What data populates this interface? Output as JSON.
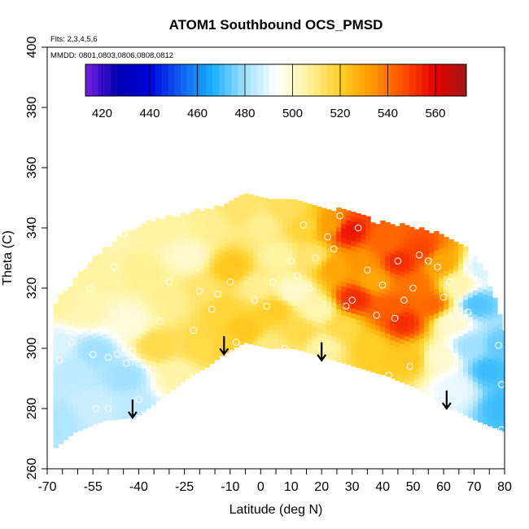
{
  "chart_data": {
    "type": "heatmap",
    "title": "ATOM1 Southbound OCS_PMSD",
    "subtitle_flights": "Flts: 2,3,4,5,6",
    "subtitle_dates": "MMDD: 0801,0803,0806,0808,0812",
    "xlabel": "Latitude (deg N)",
    "ylabel": "Theta (C)",
    "xlim": [
      -70,
      80
    ],
    "ylim": [
      260,
      400
    ],
    "x_major_ticks": [
      -70,
      -55,
      -40,
      -25,
      -10,
      0,
      10,
      20,
      30,
      40,
      50,
      60,
      70,
      80
    ],
    "x_minor_ticks": [
      -65,
      -60,
      -50,
      -45,
      -35,
      -30,
      -20,
      -15,
      -5,
      5,
      15,
      25,
      35,
      45,
      55,
      65,
      75
    ],
    "y_ticks": [
      260,
      280,
      300,
      320,
      340,
      360,
      380,
      400
    ],
    "colorbar": {
      "range": [
        413,
        573
      ],
      "tick_values": [
        420,
        440,
        460,
        480,
        500,
        520,
        540,
        560
      ],
      "tick_labels": [
        "420",
        "440",
        "460",
        "480",
        "500",
        "520",
        "540",
        "560"
      ],
      "colors": [
        "#7b1fe0",
        "#0000b0",
        "#0000d8",
        "#1060f0",
        "#18b0ff",
        "#9ee0ff",
        "#ffffff",
        "#fff4a0",
        "#ffd028",
        "#ff9a00",
        "#ff5000",
        "#e80000",
        "#a01818"
      ]
    },
    "field_anchors": [
      {
        "lat": -68,
        "theta": 275,
        "value": 482
      },
      {
        "lat": -68,
        "theta": 300,
        "value": 488
      },
      {
        "lat": -67,
        "theta": 315,
        "value": 506
      },
      {
        "lat": -62,
        "theta": 292,
        "value": 484
      },
      {
        "lat": -58,
        "theta": 312,
        "value": 504
      },
      {
        "lat": -55,
        "theta": 280,
        "value": 486
      },
      {
        "lat": -55,
        "theta": 298,
        "value": 480
      },
      {
        "lat": -53,
        "theta": 325,
        "value": 506
      },
      {
        "lat": -50,
        "theta": 336,
        "value": 504
      },
      {
        "lat": -45,
        "theta": 290,
        "value": 480
      },
      {
        "lat": -44,
        "theta": 308,
        "value": 498
      },
      {
        "lat": -42,
        "theta": 280,
        "value": 484
      },
      {
        "lat": -40,
        "theta": 325,
        "value": 508
      },
      {
        "lat": -35,
        "theta": 300,
        "value": 516
      },
      {
        "lat": -32,
        "theta": 340,
        "value": 506
      },
      {
        "lat": -30,
        "theta": 315,
        "value": 508
      },
      {
        "lat": -28,
        "theta": 290,
        "value": 505
      },
      {
        "lat": -25,
        "theta": 330,
        "value": 500
      },
      {
        "lat": -20,
        "theta": 300,
        "value": 516
      },
      {
        "lat": -20,
        "theta": 318,
        "value": 512
      },
      {
        "lat": -17,
        "theta": 340,
        "value": 508
      },
      {
        "lat": -14,
        "theta": 312,
        "value": 518
      },
      {
        "lat": -12,
        "theta": 300,
        "value": 518
      },
      {
        "lat": -10,
        "theta": 326,
        "value": 522
      },
      {
        "lat": -8,
        "theta": 345,
        "value": 512
      },
      {
        "lat": -6,
        "theta": 305,
        "value": 522
      },
      {
        "lat": -2,
        "theta": 320,
        "value": 508
      },
      {
        "lat": 0,
        "theta": 340,
        "value": 508
      },
      {
        "lat": 2,
        "theta": 300,
        "value": 510
      },
      {
        "lat": 4,
        "theta": 312,
        "value": 520
      },
      {
        "lat": 5,
        "theta": 330,
        "value": 506
      },
      {
        "lat": 8,
        "theta": 345,
        "value": 514
      },
      {
        "lat": 10,
        "theta": 318,
        "value": 500
      },
      {
        "lat": 12,
        "theta": 305,
        "value": 516
      },
      {
        "lat": 14,
        "theta": 340,
        "value": 518
      },
      {
        "lat": 16,
        "theta": 330,
        "value": 512
      },
      {
        "lat": 18,
        "theta": 312,
        "value": 504
      },
      {
        "lat": 20,
        "theta": 300,
        "value": 506
      },
      {
        "lat": 22,
        "theta": 340,
        "value": 532
      },
      {
        "lat": 24,
        "theta": 326,
        "value": 530
      },
      {
        "lat": 26,
        "theta": 306,
        "value": 516
      },
      {
        "lat": 28,
        "theta": 338,
        "value": 556
      },
      {
        "lat": 30,
        "theta": 316,
        "value": 552
      },
      {
        "lat": 32,
        "theta": 328,
        "value": 534
      },
      {
        "lat": 35,
        "theta": 300,
        "value": 520
      },
      {
        "lat": 36,
        "theta": 322,
        "value": 530
      },
      {
        "lat": 40,
        "theta": 335,
        "value": 542
      },
      {
        "lat": 42,
        "theta": 312,
        "value": 544
      },
      {
        "lat": 45,
        "theta": 328,
        "value": 552
      },
      {
        "lat": 46,
        "theta": 308,
        "value": 552
      },
      {
        "lat": 48,
        "theta": 296,
        "value": 522
      },
      {
        "lat": 50,
        "theta": 320,
        "value": 540
      },
      {
        "lat": 52,
        "theta": 332,
        "value": 548
      },
      {
        "lat": 55,
        "theta": 314,
        "value": 542
      },
      {
        "lat": 58,
        "theta": 328,
        "value": 530
      },
      {
        "lat": 58,
        "theta": 296,
        "value": 500
      },
      {
        "lat": 62,
        "theta": 308,
        "value": 500
      },
      {
        "lat": 63,
        "theta": 286,
        "value": 490
      },
      {
        "lat": 64,
        "theta": 320,
        "value": 504
      },
      {
        "lat": 68,
        "theta": 300,
        "value": 480
      },
      {
        "lat": 70,
        "theta": 314,
        "value": 472
      },
      {
        "lat": 72,
        "theta": 326,
        "value": 488
      },
      {
        "lat": 74,
        "theta": 292,
        "value": 470
      },
      {
        "lat": 78,
        "theta": 300,
        "value": 474
      },
      {
        "lat": 79,
        "theta": 280,
        "value": 470
      }
    ],
    "boundary_top": [
      [
        -68,
        315
      ],
      [
        -62,
        322
      ],
      [
        -55,
        330
      ],
      [
        -45,
        338
      ],
      [
        -35,
        342
      ],
      [
        -25,
        344
      ],
      [
        -12,
        347
      ],
      [
        -5,
        351
      ],
      [
        0,
        350
      ],
      [
        10,
        348
      ],
      [
        20,
        346
      ],
      [
        28,
        345
      ],
      [
        38,
        341
      ],
      [
        48,
        340
      ],
      [
        58,
        337
      ],
      [
        66,
        333
      ],
      [
        72,
        327
      ],
      [
        75,
        318
      ],
      [
        78,
        310
      ],
      [
        80,
        302
      ]
    ],
    "boundary_bottom": [
      [
        -68,
        267
      ],
      [
        -62,
        272
      ],
      [
        -52,
        276
      ],
      [
        -42,
        277
      ],
      [
        -35,
        282
      ],
      [
        -25,
        290
      ],
      [
        -18,
        294
      ],
      [
        -13,
        298
      ],
      [
        -6,
        302
      ],
      [
        2,
        300
      ],
      [
        10,
        300
      ],
      [
        20,
        297
      ],
      [
        30,
        294
      ],
      [
        40,
        291
      ],
      [
        50,
        287
      ],
      [
        60,
        281
      ],
      [
        70,
        276
      ],
      [
        80,
        272
      ]
    ],
    "sample_points": [
      [
        -66,
        296
      ],
      [
        -62,
        302
      ],
      [
        -55,
        298
      ],
      [
        -52,
        306
      ],
      [
        -50,
        297
      ],
      [
        -47,
        298
      ],
      [
        -44,
        295
      ],
      [
        -42,
        297
      ],
      [
        -42,
        299
      ],
      [
        -40,
        283
      ],
      [
        -50,
        280
      ],
      [
        -54,
        280
      ],
      [
        -56,
        320
      ],
      [
        -48,
        327
      ],
      [
        -45,
        338
      ],
      [
        -33,
        309
      ],
      [
        -30,
        322
      ],
      [
        -22,
        306
      ],
      [
        -20,
        319
      ],
      [
        -16,
        313
      ],
      [
        -14,
        318
      ],
      [
        -10,
        322
      ],
      [
        -8,
        302
      ],
      [
        -5,
        300
      ],
      [
        -2,
        316
      ],
      [
        0,
        299
      ],
      [
        2,
        314
      ],
      [
        4,
        322
      ],
      [
        8,
        300
      ],
      [
        10,
        329
      ],
      [
        12,
        324
      ],
      [
        14,
        341
      ],
      [
        16,
        320
      ],
      [
        18,
        330
      ],
      [
        20,
        300
      ],
      [
        22,
        337
      ],
      [
        24,
        333
      ],
      [
        26,
        344
      ],
      [
        28,
        314
      ],
      [
        30,
        316
      ],
      [
        32,
        340
      ],
      [
        35,
        326
      ],
      [
        38,
        311
      ],
      [
        40,
        321
      ],
      [
        42,
        291
      ],
      [
        44,
        310
      ],
      [
        45,
        329
      ],
      [
        47,
        316
      ],
      [
        49,
        294
      ],
      [
        50,
        320
      ],
      [
        52,
        331
      ],
      [
        55,
        329
      ],
      [
        58,
        327
      ],
      [
        60,
        317
      ],
      [
        62,
        322
      ],
      [
        64,
        310
      ],
      [
        68,
        312
      ],
      [
        70,
        332
      ],
      [
        74,
        327
      ],
      [
        78,
        301
      ],
      [
        79,
        288
      ],
      [
        79,
        273
      ]
    ],
    "arrows": [
      {
        "lat": -42,
        "theta_top": 283,
        "theta_tip": 277
      },
      {
        "lat": -12,
        "theta_top": 304,
        "theta_tip": 298
      },
      {
        "lat": 20,
        "theta_top": 302,
        "theta_tip": 296
      },
      {
        "lat": 61,
        "theta_top": 286,
        "theta_tip": 280
      }
    ]
  }
}
